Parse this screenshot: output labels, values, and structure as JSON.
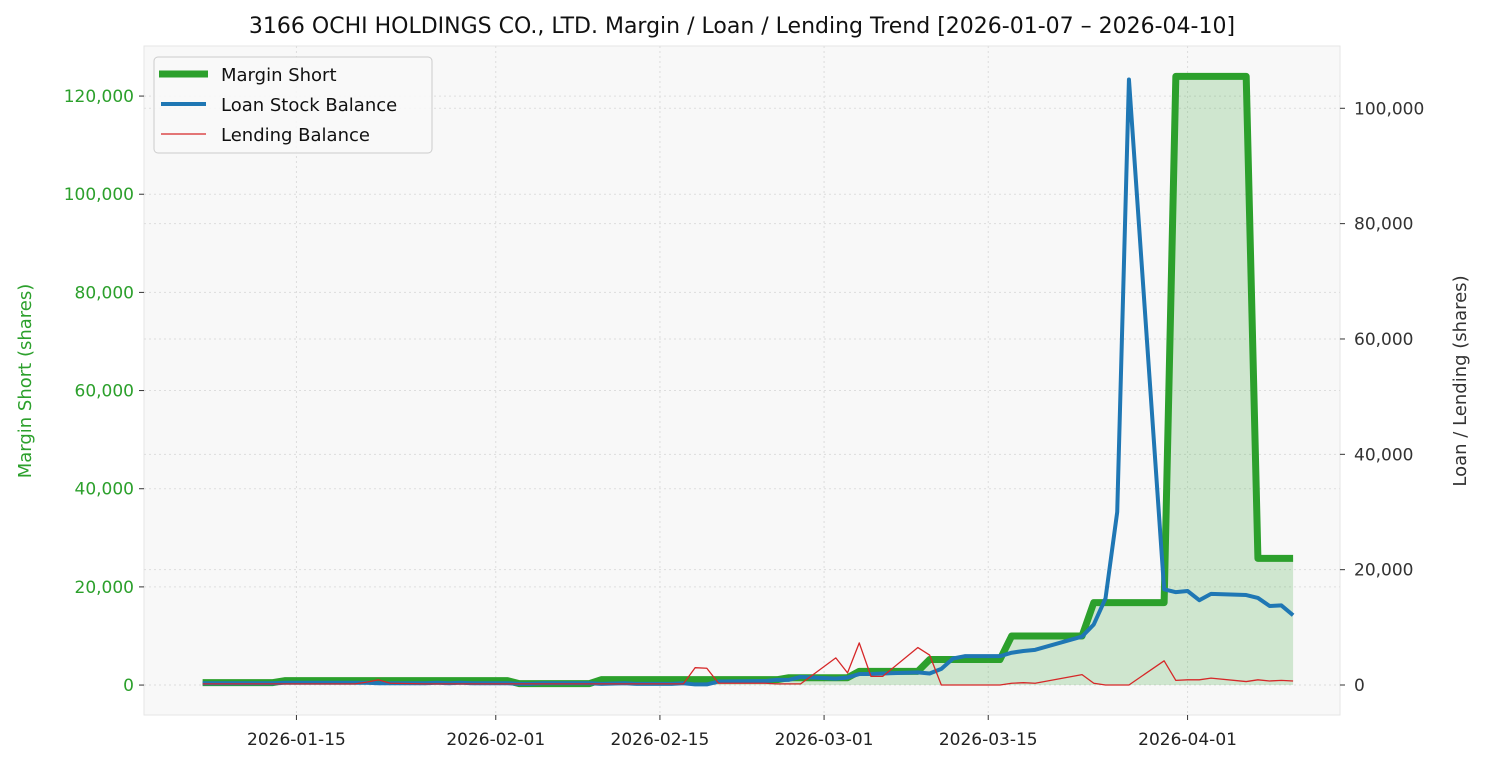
{
  "chart_data": {
    "type": "line",
    "title": "3166 OCHI HOLDINGS CO., LTD. Margin / Loan / Lending Trend [2026-01-07 – 2026-04-10]",
    "ylabel_left": "Margin Short (shares)",
    "ylabel_right": "Loan / Lending (shares)",
    "xlabel": "",
    "xlim": [
      "2026-01-02",
      "2026-04-14"
    ],
    "ylim_left": [
      -6100,
      130200
    ],
    "ylim_right": [
      -5200,
      110800
    ],
    "x_ticks": [
      "2026-01-15",
      "2026-02-01",
      "2026-02-15",
      "2026-03-01",
      "2026-03-15",
      "2026-04-01"
    ],
    "y_ticks_left": [
      0,
      20000,
      40000,
      60000,
      80000,
      100000,
      120000
    ],
    "y_tick_labels_left": [
      "0",
      "20,000",
      "40,000",
      "60,000",
      "80,000",
      "100,000",
      "120,000"
    ],
    "y_ticks_right": [
      0,
      20000,
      40000,
      60000,
      80000,
      100000
    ],
    "y_tick_labels_right": [
      "0",
      "20,000",
      "40,000",
      "60,000",
      "80,000",
      "100,000"
    ],
    "grid": true,
    "legend_position": "top-left",
    "dates": [
      "2026-01-07",
      "2026-01-08",
      "2026-01-09",
      "2026-01-13",
      "2026-01-14",
      "2026-01-15",
      "2026-01-16",
      "2026-01-19",
      "2026-01-20",
      "2026-01-21",
      "2026-01-22",
      "2026-01-23",
      "2026-01-26",
      "2026-01-27",
      "2026-01-28",
      "2026-01-29",
      "2026-01-30",
      "2026-02-02",
      "2026-02-03",
      "2026-02-04",
      "2026-02-05",
      "2026-02-06",
      "2026-02-09",
      "2026-02-10",
      "2026-02-12",
      "2026-02-13",
      "2026-02-16",
      "2026-02-17",
      "2026-02-18",
      "2026-02-19",
      "2026-02-20",
      "2026-02-24",
      "2026-02-25",
      "2026-02-26",
      "2026-02-27",
      "2026-03-02",
      "2026-03-03",
      "2026-03-04",
      "2026-03-05",
      "2026-03-06",
      "2026-03-09",
      "2026-03-10",
      "2026-03-11",
      "2026-03-12",
      "2026-03-13",
      "2026-03-16",
      "2026-03-17",
      "2026-03-18",
      "2026-03-19",
      "2026-03-23",
      "2026-03-24",
      "2026-03-25",
      "2026-03-26",
      "2026-03-27",
      "2026-03-30",
      "2026-03-31",
      "2026-04-01",
      "2026-04-02",
      "2026-04-03",
      "2026-04-06",
      "2026-04-07",
      "2026-04-08",
      "2026-04-09",
      "2026-04-10"
    ],
    "series": [
      {
        "name": "Margin Short",
        "axis": "left",
        "color": "#2ca02c",
        "values": [
          500,
          500,
          500,
          500,
          900,
          900,
          900,
          900,
          900,
          900,
          900,
          900,
          900,
          900,
          900,
          900,
          900,
          900,
          300,
          300,
          300,
          300,
          300,
          1100,
          1100,
          1100,
          1100,
          1100,
          1100,
          1100,
          1100,
          1100,
          1100,
          1500,
          1500,
          1500,
          1500,
          2800,
          2800,
          2800,
          2800,
          5200,
          5200,
          5200,
          5200,
          5200,
          10000,
          10000,
          10000,
          10000,
          16800,
          16800,
          16800,
          16800,
          16800,
          124000,
          124000,
          124000,
          124000,
          124000,
          25800,
          25800,
          25800,
          25800
        ]
      },
      {
        "name": "Loan Stock Balance",
        "axis": "right",
        "color": "#1f77b4",
        "values": [
          300,
          300,
          300,
          300,
          400,
          400,
          400,
          400,
          400,
          400,
          300,
          300,
          300,
          400,
          300,
          400,
          300,
          300,
          200,
          200,
          300,
          300,
          300,
          200,
          300,
          200,
          200,
          300,
          100,
          100,
          600,
          700,
          900,
          900,
          1400,
          1100,
          1300,
          1900,
          1900,
          2000,
          2200,
          2000,
          2800,
          4600,
          5000,
          5000,
          5600,
          5900,
          6100,
          8400,
          10500,
          15000,
          30000,
          105000,
          16600,
          16100,
          16300,
          14700,
          15800,
          15600,
          15100,
          13700,
          13800,
          12100
        ]
      },
      {
        "name": "Lending Balance",
        "axis": "right",
        "color": "#d62728",
        "values": [
          200,
          200,
          200,
          200,
          200,
          200,
          200,
          200,
          200,
          500,
          900,
          300,
          200,
          200,
          200,
          200,
          200,
          200,
          200,
          200,
          200,
          200,
          200,
          200,
          200,
          200,
          200,
          200,
          3000,
          2900,
          300,
          300,
          200,
          200,
          200,
          4700,
          2100,
          7300,
          1500,
          1500,
          6500,
          5200,
          0,
          0,
          0,
          0,
          300,
          400,
          300,
          1800,
          300,
          0,
          0,
          0,
          4200,
          800,
          900,
          900,
          1200,
          600,
          900,
          700,
          800,
          700
        ]
      }
    ]
  }
}
